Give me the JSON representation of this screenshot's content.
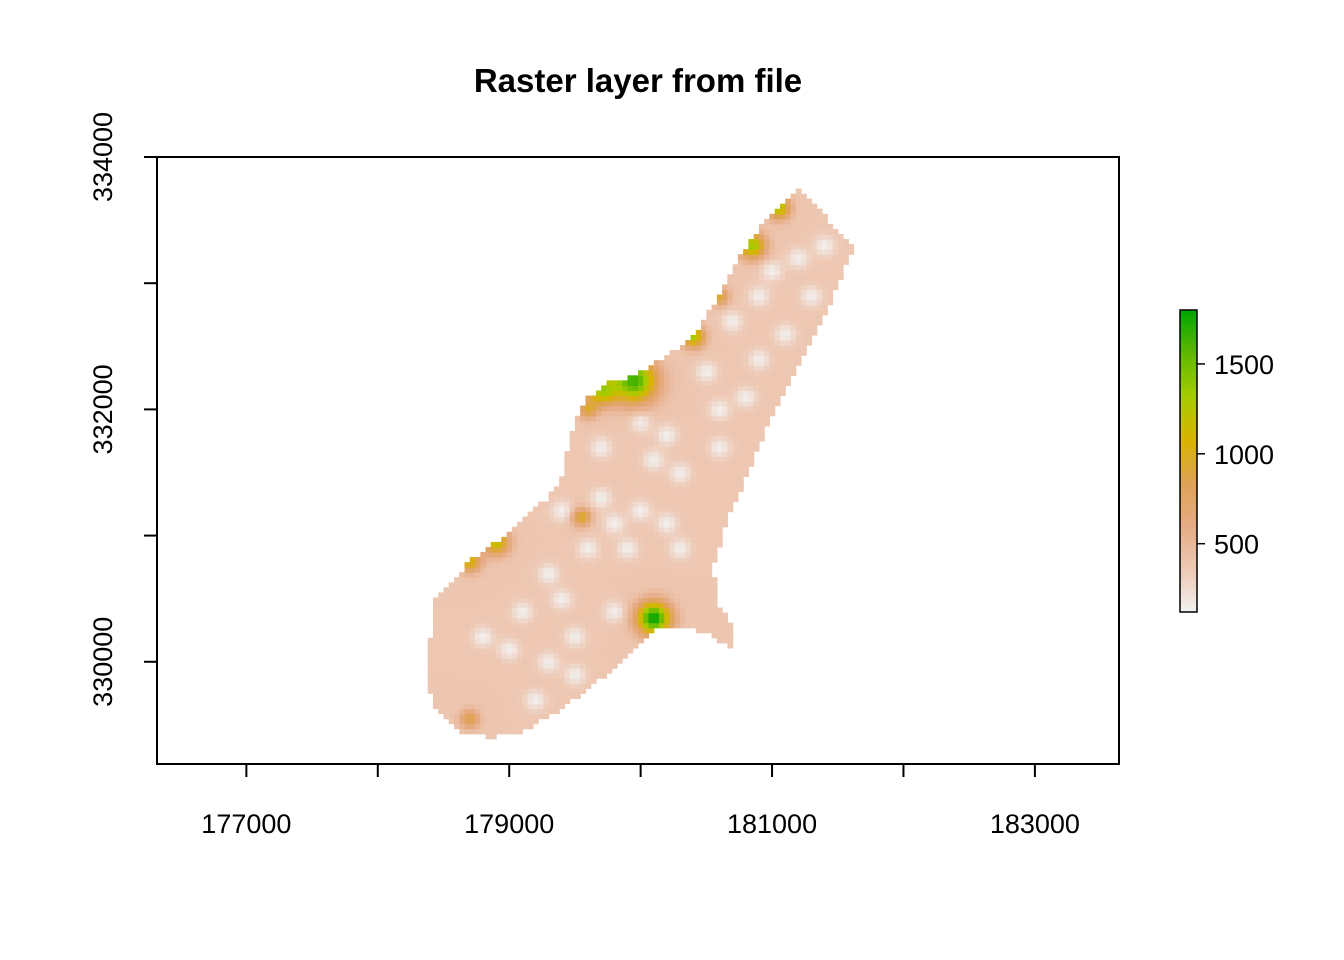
{
  "chart_data": {
    "type": "heatmap",
    "title": "Raster layer from file",
    "xlabel": "",
    "ylabel": "",
    "xlim": [
      176320,
      183640
    ],
    "ylim": [
      329190,
      334000
    ],
    "x_ticks": [
      177000,
      178000,
      179000,
      180000,
      181000,
      182000,
      183000
    ],
    "x_tick_labels": [
      "177000",
      "",
      "179000",
      "",
      "181000",
      "",
      "183000"
    ],
    "y_ticks": [
      330000,
      331000,
      332000,
      333000,
      334000
    ],
    "y_tick_labels": [
      "330000",
      "",
      "332000",
      "",
      "334000"
    ],
    "grid": false,
    "legend": {
      "placement": "right",
      "min": 120,
      "max": 1800,
      "ticks": [
        500,
        1000,
        1500
      ],
      "tick_labels": [
        "500",
        "1000",
        "1500"
      ],
      "colors": [
        "#f2f2f2",
        "#eec9b5",
        "#e6ab84",
        "#dfa256",
        "#d9b300",
        "#a6cc00",
        "#5fb800",
        "#00a600"
      ]
    },
    "field": {
      "background": 380,
      "outline": [
        [
          178430,
          330480
        ],
        [
          178500,
          330560
        ],
        [
          178600,
          330650
        ],
        [
          178700,
          330800
        ],
        [
          178800,
          330880
        ],
        [
          178920,
          330960
        ],
        [
          179050,
          331080
        ],
        [
          179150,
          331180
        ],
        [
          179300,
          331300
        ],
        [
          179400,
          331450
        ],
        [
          179450,
          331700
        ],
        [
          179500,
          331900
        ],
        [
          179600,
          332100
        ],
        [
          179750,
          332210
        ],
        [
          179880,
          332240
        ],
        [
          180000,
          332300
        ],
        [
          180200,
          332420
        ],
        [
          180400,
          332580
        ],
        [
          180500,
          332750
        ],
        [
          180630,
          332950
        ],
        [
          180750,
          333200
        ],
        [
          180920,
          333450
        ],
        [
          181100,
          333650
        ],
        [
          181180,
          333750
        ],
        [
          181300,
          333650
        ],
        [
          181500,
          333420
        ],
        [
          181620,
          333300
        ],
        [
          181530,
          333050
        ],
        [
          181400,
          332750
        ],
        [
          181200,
          332350
        ],
        [
          181000,
          331950
        ],
        [
          180820,
          331500
        ],
        [
          180650,
          331100
        ],
        [
          180550,
          330750
        ],
        [
          180580,
          330480
        ],
        [
          180700,
          330300
        ],
        [
          180700,
          330100
        ],
        [
          180500,
          330230
        ],
        [
          180280,
          330280
        ],
        [
          180100,
          330250
        ],
        [
          179850,
          330000
        ],
        [
          179600,
          329780
        ],
        [
          179350,
          329600
        ],
        [
          179100,
          329450
        ],
        [
          178870,
          329400
        ],
        [
          178640,
          329450
        ],
        [
          178450,
          329620
        ],
        [
          178380,
          329830
        ],
        [
          178390,
          330100
        ]
      ],
      "highs": [
        {
          "x": 179950,
          "y": 332230,
          "v": 1650,
          "r": 120
        },
        {
          "x": 179700,
          "y": 332150,
          "v": 1250,
          "r": 80
        },
        {
          "x": 180100,
          "y": 330350,
          "v": 1800,
          "r": 90
        },
        {
          "x": 180400,
          "y": 332580,
          "v": 1300,
          "r": 60
        },
        {
          "x": 180850,
          "y": 333300,
          "v": 1350,
          "r": 70
        },
        {
          "x": 181050,
          "y": 333600,
          "v": 1300,
          "r": 60
        },
        {
          "x": 178900,
          "y": 330950,
          "v": 1200,
          "r": 70
        },
        {
          "x": 178700,
          "y": 330800,
          "v": 1100,
          "r": 60
        },
        {
          "x": 179550,
          "y": 331150,
          "v": 1000,
          "r": 50
        },
        {
          "x": 180600,
          "y": 332900,
          "v": 950,
          "r": 50
        },
        {
          "x": 178700,
          "y": 329550,
          "v": 900,
          "r": 50
        },
        {
          "x": 179600,
          "y": 332000,
          "v": 900,
          "r": 50
        }
      ],
      "lows": [
        [
          180000,
          331200
        ],
        [
          179800,
          331100
        ],
        [
          179700,
          331300
        ],
        [
          180200,
          331100
        ],
        [
          180300,
          331500
        ],
        [
          180100,
          331600
        ],
        [
          179900,
          330900
        ],
        [
          179600,
          330900
        ],
        [
          180000,
          331900
        ],
        [
          179700,
          331700
        ],
        [
          180500,
          332300
        ],
        [
          180700,
          332700
        ],
        [
          180900,
          332900
        ],
        [
          181000,
          333100
        ],
        [
          181200,
          333200
        ],
        [
          181100,
          332600
        ],
        [
          180900,
          332400
        ],
        [
          181300,
          332900
        ],
        [
          180600,
          332000
        ],
        [
          180200,
          331800
        ],
        [
          179400,
          330500
        ],
        [
          179500,
          330200
        ],
        [
          179300,
          330700
        ],
        [
          179100,
          330400
        ],
        [
          179800,
          330400
        ],
        [
          179500,
          329900
        ],
        [
          179300,
          330000
        ],
        [
          179000,
          330100
        ],
        [
          178800,
          330200
        ],
        [
          180300,
          330900
        ],
        [
          179200,
          329700
        ],
        [
          179400,
          331200
        ],
        [
          180600,
          331700
        ],
        [
          181400,
          333300
        ],
        [
          180800,
          332100
        ]
      ]
    }
  }
}
